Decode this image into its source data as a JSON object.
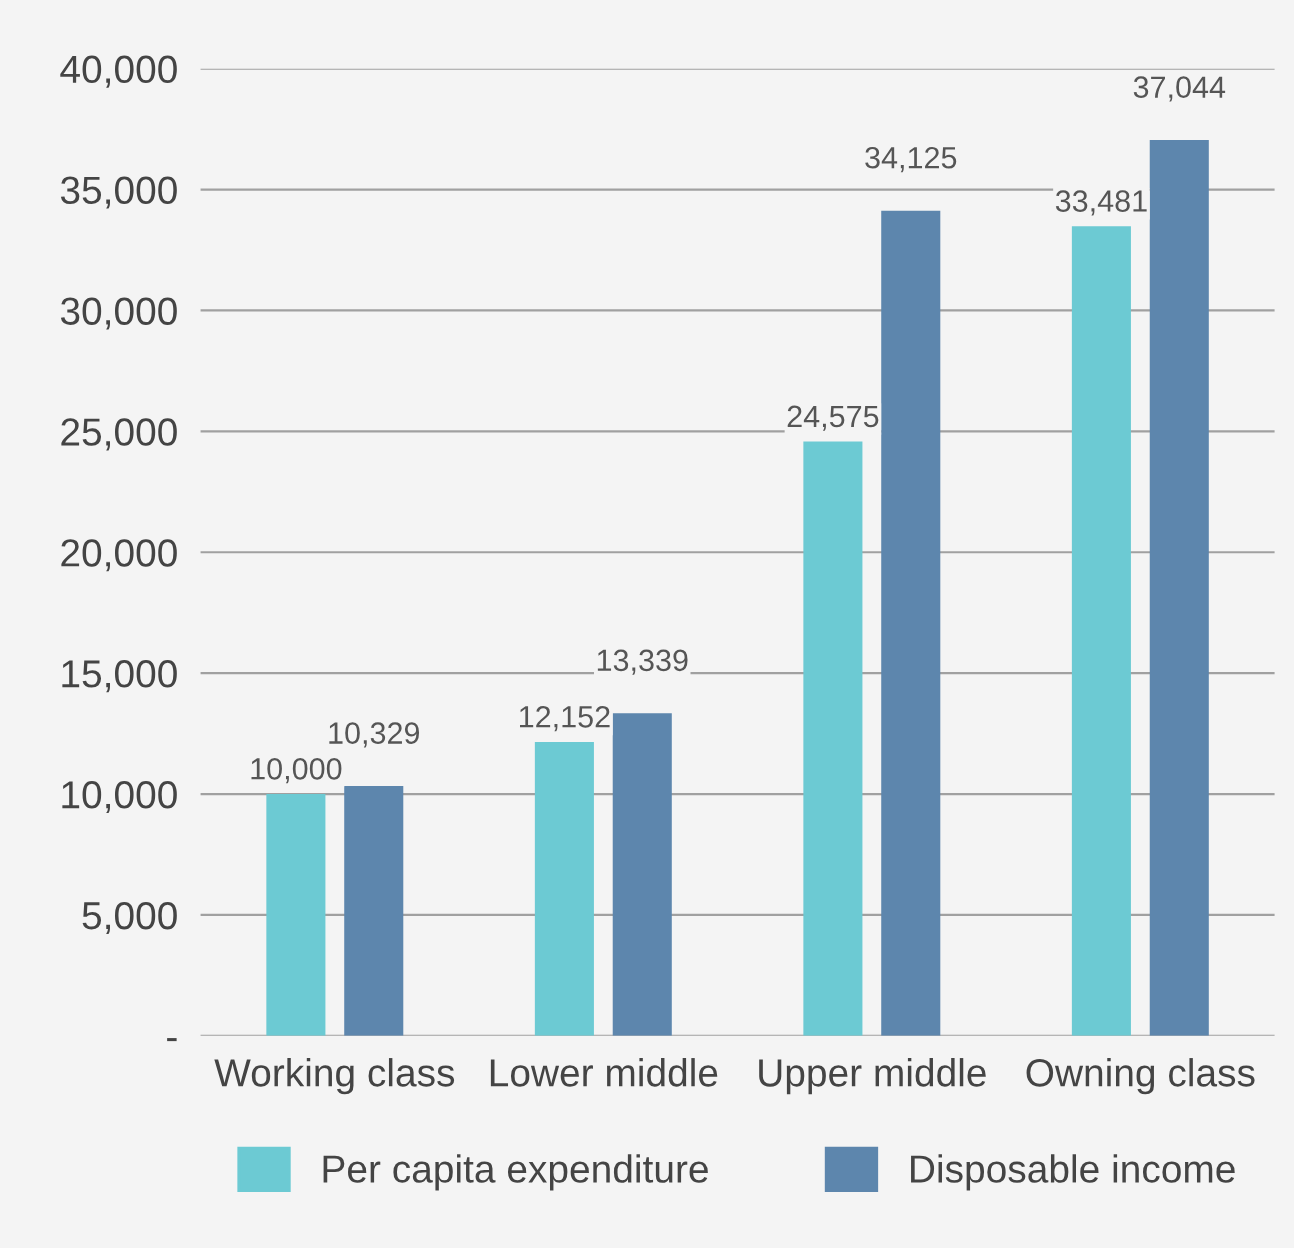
{
  "chart_data": {
    "type": "bar",
    "categories": [
      "Working class",
      "Lower middle",
      "Upper middle",
      "Owning class"
    ],
    "series": [
      {
        "name": "Per capita expenditure",
        "color": "#6ccad3",
        "values": [
          10000,
          12152,
          24575,
          33481
        ],
        "value_labels": [
          "10,000",
          "12,152",
          "24,575",
          "33,481"
        ]
      },
      {
        "name": "Disposable income",
        "color": "#5d86ad",
        "values": [
          10329,
          13339,
          34125,
          37044
        ],
        "value_labels": [
          "10,329",
          "13,339",
          "34,125",
          "37,044"
        ]
      }
    ],
    "ylim": [
      0,
      40000
    ],
    "yticks": [
      {
        "value": 0,
        "label": "-"
      },
      {
        "value": 5000,
        "label": "5,000"
      },
      {
        "value": 10000,
        "label": "10,000"
      },
      {
        "value": 15000,
        "label": "15,000"
      },
      {
        "value": 20000,
        "label": "20,000"
      },
      {
        "value": 25000,
        "label": "25,000"
      },
      {
        "value": 30000,
        "label": "30,000"
      },
      {
        "value": 35000,
        "label": "35,000"
      },
      {
        "value": 40000,
        "label": "40,000"
      }
    ],
    "grid": "y",
    "legend": "bottom"
  }
}
